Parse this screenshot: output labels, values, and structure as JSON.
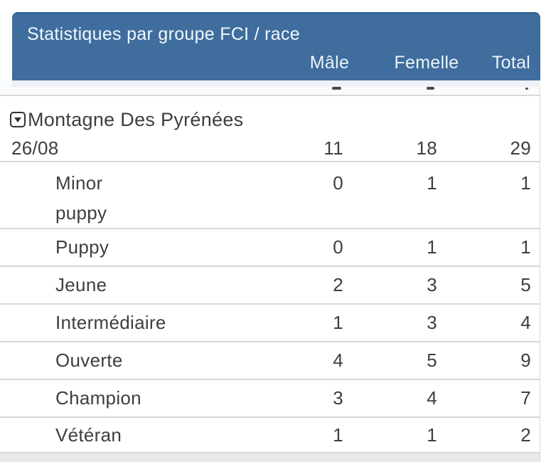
{
  "header": {
    "title": "Statistiques par groupe FCI / race",
    "columns": [
      "Mâle",
      "Femelle",
      "Total"
    ],
    "bg_color": "#3e6d9e",
    "text_color": "#f3f7fa"
  },
  "group": {
    "toggle_icon": "caret-down-square",
    "name": "Montagne Des Pyrénées",
    "date": "26/08",
    "male": "11",
    "female": "18",
    "total": "29"
  },
  "rows": [
    {
      "label": "Minor\npuppy",
      "male": "0",
      "female": "1",
      "total": "1"
    },
    {
      "label": "Puppy",
      "male": "0",
      "female": "1",
      "total": "1"
    },
    {
      "label": "Jeune",
      "male": "2",
      "female": "3",
      "total": "5"
    },
    {
      "label": "Intermédiaire",
      "male": "1",
      "female": "3",
      "total": "4"
    },
    {
      "label": "Ouverte",
      "male": "4",
      "female": "5",
      "total": "9"
    },
    {
      "label": "Champion",
      "male": "3",
      "female": "4",
      "total": "7"
    },
    {
      "label": "Vétéran",
      "male": "1",
      "female": "1",
      "total": "2"
    }
  ],
  "colors": {
    "row_text": "#3e3e3e",
    "divider": "#d8d8d8",
    "next_row_bg": "#e9e9e9"
  }
}
